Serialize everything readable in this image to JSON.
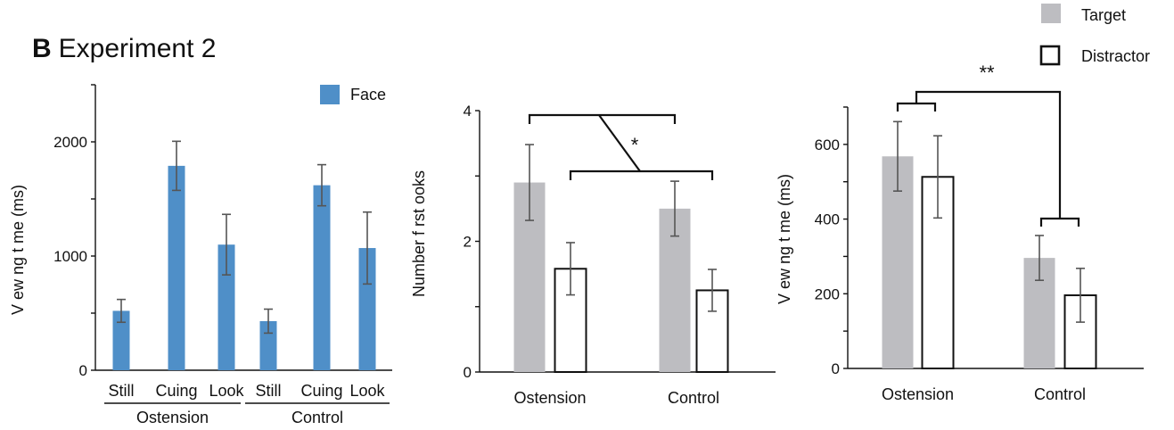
{
  "panel_label": "B",
  "panel_title": "Experiment 2",
  "colors": {
    "face": "#4f8fc8",
    "target": "#bdbdc1",
    "distractor_fill": "#ffffff",
    "distractor_edge": "#111111",
    "error_bar": "#555555"
  },
  "legend": {
    "target": "Target",
    "distractor": "Distractor"
  },
  "chart_data": [
    {
      "type": "bar",
      "ylabel": "V ew ng t me (ms)",
      "ylim": [
        0,
        2500
      ],
      "yticks": [
        0,
        1000,
        2000
      ],
      "legend": [
        "Face"
      ],
      "legend_placement": "top-right",
      "categories": [
        "Still",
        "Cuing",
        "Look",
        "Still",
        "Cuing",
        "Look"
      ],
      "groups": [
        {
          "label": "Ostension",
          "categories": [
            "Still",
            "Cuing",
            "Look"
          ]
        },
        {
          "label": "Control",
          "categories": [
            "Still",
            "Cuing",
            "Look"
          ]
        }
      ],
      "series": [
        {
          "name": "Face",
          "values": [
            520,
            1790,
            1100,
            430,
            1620,
            1070
          ],
          "errors": [
            100,
            215,
            265,
            105,
            180,
            315
          ]
        }
      ],
      "grid": false
    },
    {
      "type": "bar",
      "ylabel": "Number f rst ooks",
      "ylim": [
        0,
        4
      ],
      "yticks": [
        0,
        2,
        4
      ],
      "categories": [
        "Ostension",
        "Control"
      ],
      "series": [
        {
          "name": "Target",
          "values": [
            2.9,
            2.5
          ],
          "errors": [
            0.58,
            0.42
          ]
        },
        {
          "name": "Distractor",
          "values": [
            1.58,
            1.25
          ],
          "errors": [
            0.4,
            0.32
          ]
        }
      ],
      "annotation": "*",
      "grid": false
    },
    {
      "type": "bar",
      "ylabel": "V ew ng t me (ms)",
      "ylim": [
        0,
        700
      ],
      "yticks": [
        0,
        200,
        400,
        600
      ],
      "categories": [
        "Ostension",
        "Control"
      ],
      "series": [
        {
          "name": "Target",
          "values": [
            568,
            296
          ],
          "errors": [
            93,
            60
          ]
        },
        {
          "name": "Distractor",
          "values": [
            513,
            196
          ],
          "errors": [
            110,
            72
          ]
        }
      ],
      "annotation": "**",
      "legend_placement": "top-right",
      "grid": false
    }
  ]
}
